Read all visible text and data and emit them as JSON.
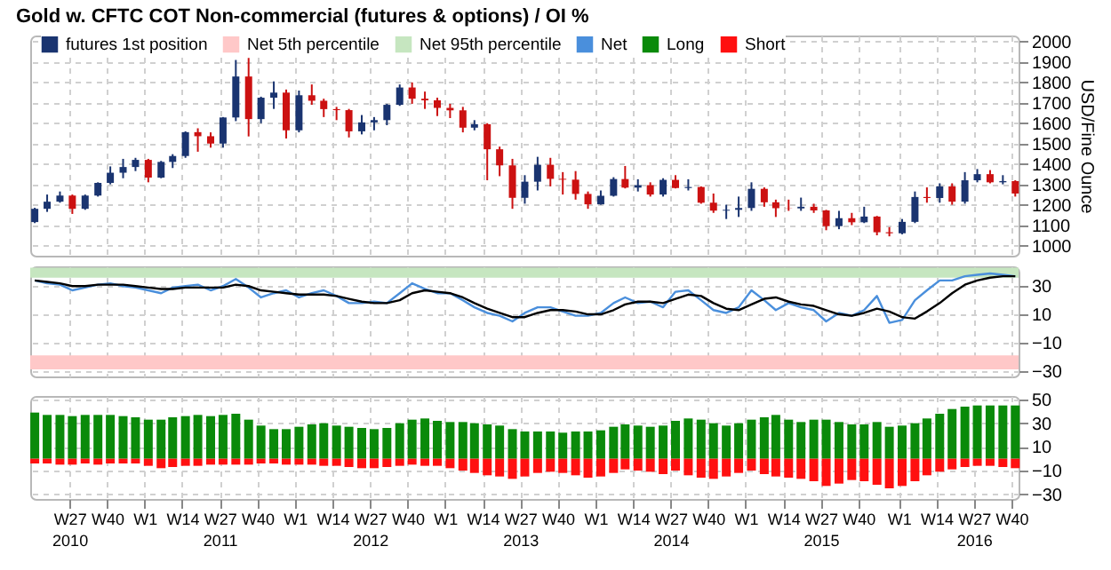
{
  "chart_data": [
    {
      "type": "candlestick",
      "title": "Gold w. CFTC COT Non-commercial (futures & options) / OI %",
      "ylabel": "USD/Fine Ounce",
      "legend": "top left",
      "grid": true,
      "tick_labels": "y",
      "xlim": [
        "2010-04-01",
        "2016-10-20"
      ],
      "x": [
        "2010-04-12",
        "2010-05-12",
        "2010-06-12",
        "2010-07-12",
        "2010-08-12",
        "2010-09-12",
        "2010-10-12",
        "2010-11-12",
        "2010-12-12",
        "2011-01-12",
        "2011-02-12",
        "2011-03-12",
        "2011-04-12",
        "2011-05-12",
        "2011-06-12",
        "2011-07-12",
        "2011-08-12",
        "2011-09-12",
        "2011-10-12",
        "2011-11-12",
        "2011-12-12",
        "2012-01-12",
        "2012-02-12",
        "2012-03-12",
        "2012-04-12",
        "2012-05-12",
        "2012-06-12",
        "2012-07-12",
        "2012-08-12",
        "2012-09-12",
        "2012-10-12",
        "2012-11-12",
        "2012-12-12",
        "2013-01-12",
        "2013-02-12",
        "2013-03-12",
        "2013-04-12",
        "2013-05-12",
        "2013-06-12",
        "2013-07-12",
        "2013-08-12",
        "2013-09-12",
        "2013-10-12",
        "2013-11-12",
        "2013-12-12",
        "2014-01-12",
        "2014-02-12",
        "2014-03-12",
        "2014-04-12",
        "2014-05-12",
        "2014-06-12",
        "2014-07-12",
        "2014-08-12",
        "2014-09-12",
        "2014-10-12",
        "2014-11-12",
        "2014-12-12",
        "2015-01-12",
        "2015-02-12",
        "2015-03-12",
        "2015-04-12",
        "2015-05-12",
        "2015-06-12",
        "2015-07-12",
        "2015-08-12",
        "2015-09-12",
        "2015-10-12",
        "2015-11-12",
        "2015-12-12",
        "2016-01-12",
        "2016-02-12",
        "2016-03-12",
        "2016-04-12",
        "2016-05-12",
        "2016-06-12",
        "2016-07-12",
        "2016-08-12",
        "2016-09-12",
        "2016-10-12"
      ],
      "series": [
        {
          "name": "futures 1st position",
          "type": "candlestick",
          "colors": [
            "#1a3470",
            "#1a3470",
            "#1a3470",
            "#cc1111",
            "#1a3470",
            "#1a3470",
            "#1a3470",
            "#1a3470",
            "#1a3470",
            "#cc1111",
            "#1a3470",
            "#1a3470",
            "#1a3470",
            "#cc1111",
            "#cc1111",
            "#1a3470",
            "#1a3470",
            "#cc1111",
            "#1a3470",
            "#1a3470",
            "#cc1111",
            "#1a3470",
            "#cc1111",
            "#cc1111",
            "#cc1111",
            "#cc1111",
            "#1a3470",
            "#1a3470",
            "#1a3470",
            "#1a3470",
            "#cc1111",
            "#cc1111",
            "#cc1111",
            "#cc1111",
            "#cc1111",
            "#1a3470",
            "#cc1111",
            "#cc1111",
            "#cc1111",
            "#1a3470",
            "#1a3470",
            "#cc1111",
            "#cc1111",
            "#cc1111",
            "#cc1111",
            "#1a3470",
            "#1a3470",
            "#cc1111",
            "#1a3470",
            "#cc1111",
            "#1a3470",
            "#cc1111",
            "#1a3470",
            "#cc1111",
            "#cc1111",
            "#1a3470",
            "#1a3470",
            "#1a3470",
            "#cc1111",
            "#cc1111",
            "#cc1111",
            "#1a3470",
            "#cc1111",
            "#cc1111",
            "#1a3470",
            "#cc1111",
            "#1a3470",
            "#cc1111",
            "#cc1111",
            "#1a3470",
            "#1a3470",
            "#cc1111",
            "#1a3470",
            "#cc1111",
            "#1a3470",
            "#1a3470",
            "#cc1111",
            "#1a3470",
            "#cc1111"
          ],
          "ohlc": [
            [
              1115,
              1185,
              1110,
              1180
            ],
            [
              1180,
              1250,
              1165,
              1215
            ],
            [
              1215,
              1265,
              1210,
              1245
            ],
            [
              1245,
              1250,
              1155,
              1180
            ],
            [
              1180,
              1250,
              1175,
              1245
            ],
            [
              1245,
              1310,
              1240,
              1307
            ],
            [
              1307,
              1388,
              1300,
              1357
            ],
            [
              1357,
              1425,
              1330,
              1385
            ],
            [
              1385,
              1430,
              1365,
              1420
            ],
            [
              1420,
              1425,
              1310,
              1333
            ],
            [
              1333,
              1415,
              1330,
              1410
            ],
            [
              1410,
              1448,
              1380,
              1439
            ],
            [
              1439,
              1560,
              1430,
              1556
            ],
            [
              1556,
              1575,
              1460,
              1536
            ],
            [
              1536,
              1555,
              1480,
              1500
            ],
            [
              1500,
              1630,
              1480,
              1628
            ],
            [
              1628,
              1910,
              1610,
              1829
            ],
            [
              1829,
              1920,
              1535,
              1620
            ],
            [
              1620,
              1730,
              1600,
              1725
            ],
            [
              1725,
              1805,
              1670,
              1750
            ],
            [
              1750,
              1765,
              1525,
              1565
            ],
            [
              1565,
              1760,
              1555,
              1737
            ],
            [
              1737,
              1790,
              1690,
              1710
            ],
            [
              1710,
              1720,
              1630,
              1669
            ],
            [
              1669,
              1680,
              1615,
              1664
            ],
            [
              1664,
              1670,
              1530,
              1560
            ],
            [
              1560,
              1640,
              1545,
              1604
            ],
            [
              1604,
              1630,
              1565,
              1615
            ],
            [
              1615,
              1695,
              1590,
              1690
            ],
            [
              1690,
              1790,
              1685,
              1775
            ],
            [
              1775,
              1800,
              1695,
              1720
            ],
            [
              1720,
              1755,
              1670,
              1712
            ],
            [
              1712,
              1725,
              1635,
              1675
            ],
            [
              1675,
              1695,
              1625,
              1663
            ],
            [
              1663,
              1680,
              1555,
              1578
            ],
            [
              1578,
              1615,
              1565,
              1595
            ],
            [
              1595,
              1600,
              1320,
              1472
            ],
            [
              1472,
              1485,
              1340,
              1393
            ],
            [
              1393,
              1425,
              1180,
              1234
            ],
            [
              1234,
              1345,
              1205,
              1313
            ],
            [
              1313,
              1435,
              1270,
              1396
            ],
            [
              1396,
              1430,
              1290,
              1327
            ],
            [
              1327,
              1360,
              1250,
              1323
            ],
            [
              1323,
              1365,
              1225,
              1253
            ],
            [
              1253,
              1265,
              1180,
              1202
            ],
            [
              1202,
              1270,
              1200,
              1244
            ],
            [
              1244,
              1335,
              1240,
              1326
            ],
            [
              1326,
              1390,
              1280,
              1284
            ],
            [
              1284,
              1325,
              1265,
              1296
            ],
            [
              1296,
              1310,
              1240,
              1250
            ],
            [
              1250,
              1330,
              1240,
              1322
            ],
            [
              1322,
              1345,
              1280,
              1282
            ],
            [
              1282,
              1325,
              1270,
              1287
            ],
            [
              1287,
              1290,
              1205,
              1210
            ],
            [
              1210,
              1255,
              1160,
              1171
            ],
            [
              1171,
              1200,
              1130,
              1175
            ],
            [
              1175,
              1240,
              1140,
              1184
            ],
            [
              1184,
              1310,
              1170,
              1278
            ],
            [
              1278,
              1285,
              1190,
              1212
            ],
            [
              1212,
              1225,
              1140,
              1183
            ],
            [
              1183,
              1225,
              1170,
              1182
            ],
            [
              1182,
              1235,
              1170,
              1190
            ],
            [
              1190,
              1205,
              1160,
              1172
            ],
            [
              1172,
              1175,
              1075,
              1095
            ],
            [
              1095,
              1170,
              1080,
              1134
            ],
            [
              1134,
              1160,
              1100,
              1114
            ],
            [
              1114,
              1190,
              1110,
              1142
            ],
            [
              1142,
              1145,
              1050,
              1065
            ],
            [
              1065,
              1090,
              1045,
              1060
            ],
            [
              1060,
              1130,
              1055,
              1116
            ],
            [
              1116,
              1265,
              1110,
              1238
            ],
            [
              1238,
              1285,
              1210,
              1233
            ],
            [
              1233,
              1305,
              1210,
              1290
            ],
            [
              1290,
              1305,
              1200,
              1215
            ],
            [
              1215,
              1360,
              1205,
              1320
            ],
            [
              1320,
              1375,
              1310,
              1350
            ],
            [
              1350,
              1370,
              1305,
              1310
            ],
            [
              1310,
              1345,
              1300,
              1316
            ],
            [
              1316,
              1320,
              1240,
              1255
            ]
          ]
        }
      ],
      "ylim": [
        950,
        2030
      ],
      "yticks": [
        1000,
        1100,
        1200,
        1300,
        1400,
        1500,
        1600,
        1700,
        1800,
        1900,
        2000
      ]
    },
    {
      "type": "line",
      "legend": "top",
      "grid": true,
      "tick_labels": "y",
      "xlim": [
        "2010-04-01",
        "2016-10-20"
      ],
      "x": [
        "2010-04-12",
        "2010-05-12",
        "2010-06-12",
        "2010-07-12",
        "2010-08-12",
        "2010-09-12",
        "2010-10-12",
        "2010-11-12",
        "2010-12-12",
        "2011-01-12",
        "2011-02-12",
        "2011-03-12",
        "2011-04-12",
        "2011-05-12",
        "2011-06-12",
        "2011-07-12",
        "2011-08-12",
        "2011-09-12",
        "2011-10-12",
        "2011-11-12",
        "2011-12-12",
        "2012-01-12",
        "2012-02-12",
        "2012-03-12",
        "2012-04-12",
        "2012-05-12",
        "2012-06-12",
        "2012-07-12",
        "2012-08-12",
        "2012-09-12",
        "2012-10-12",
        "2012-11-12",
        "2012-12-12",
        "2013-01-12",
        "2013-02-12",
        "2013-03-12",
        "2013-04-12",
        "2013-05-12",
        "2013-06-12",
        "2013-07-12",
        "2013-08-12",
        "2013-09-12",
        "2013-10-12",
        "2013-11-12",
        "2013-12-12",
        "2014-01-12",
        "2014-02-12",
        "2014-03-12",
        "2014-04-12",
        "2014-05-12",
        "2014-06-12",
        "2014-07-12",
        "2014-08-12",
        "2014-09-12",
        "2014-10-12",
        "2014-11-12",
        "2014-12-12",
        "2015-01-12",
        "2015-02-12",
        "2015-03-12",
        "2015-04-12",
        "2015-05-12",
        "2015-06-12",
        "2015-07-12",
        "2015-08-12",
        "2015-09-12",
        "2015-10-12",
        "2015-11-12",
        "2015-12-12",
        "2016-01-12",
        "2016-02-12",
        "2016-03-12",
        "2016-04-12",
        "2016-05-12",
        "2016-06-12",
        "2016-07-12",
        "2016-08-12",
        "2016-09-12",
        "2016-10-12"
      ],
      "bands": [
        {
          "axis": "y",
          "from": -29,
          "to": -19,
          "label": "Net 5th percentile",
          "color": "#ffc8c8"
        },
        {
          "axis": "y",
          "from": 36,
          "to": 43,
          "label": "Net 95th percentile",
          "color": "#c6e6c0"
        }
      ],
      "series": [
        {
          "name": "Net",
          "color": "#4a8fdc",
          "values": [
            34,
            32,
            31,
            27,
            29,
            31,
            32,
            30,
            29,
            27,
            25,
            29,
            30,
            31,
            27,
            30,
            35,
            29,
            22,
            25,
            27,
            22,
            25,
            27,
            23,
            18,
            18,
            19,
            18,
            25,
            32,
            28,
            25,
            25,
            20,
            15,
            11,
            9,
            5,
            11,
            15,
            15,
            12,
            9,
            9,
            11,
            18,
            22,
            18,
            19,
            15,
            26,
            27,
            20,
            13,
            11,
            15,
            27,
            20,
            13,
            18,
            15,
            13,
            5,
            11,
            9,
            13,
            23,
            4,
            6,
            20,
            27,
            34,
            34,
            37,
            38,
            39,
            38,
            37
          ]
        },
        {
          "color": "#000000",
          "values": [
            34,
            33,
            32,
            30,
            30,
            31,
            31,
            31,
            30,
            29,
            28,
            28,
            29,
            29,
            29,
            29,
            31,
            30,
            27,
            26,
            25,
            24,
            24,
            24,
            23,
            21,
            19,
            18,
            18,
            20,
            25,
            27,
            26,
            25,
            22,
            18,
            14,
            11,
            8,
            8,
            11,
            13,
            13,
            12,
            10,
            10,
            13,
            17,
            19,
            19,
            18,
            21,
            24,
            23,
            18,
            14,
            13,
            17,
            21,
            22,
            19,
            17,
            16,
            13,
            10,
            9,
            11,
            14,
            12,
            8,
            7,
            12,
            18,
            25,
            31,
            34,
            36,
            37,
            37
          ]
        }
      ],
      "ylim": [
        -34,
        44
      ],
      "yticks": [
        30,
        10,
        -10,
        -30
      ]
    },
    {
      "type": "bar",
      "legend": "top",
      "stacked": true,
      "grid": true,
      "xlim": [
        "2010-04-01",
        "2016-10-20"
      ],
      "x": [
        "2010-04-12",
        "2010-05-12",
        "2010-06-12",
        "2010-07-12",
        "2010-08-12",
        "2010-09-12",
        "2010-10-12",
        "2010-11-12",
        "2010-12-12",
        "2011-01-12",
        "2011-02-12",
        "2011-03-12",
        "2011-04-12",
        "2011-05-12",
        "2011-06-12",
        "2011-07-12",
        "2011-08-12",
        "2011-09-12",
        "2011-10-12",
        "2011-11-12",
        "2011-12-12",
        "2012-01-12",
        "2012-02-12",
        "2012-03-12",
        "2012-04-12",
        "2012-05-12",
        "2012-06-12",
        "2012-07-12",
        "2012-08-12",
        "2012-09-12",
        "2012-10-12",
        "2012-11-12",
        "2012-12-12",
        "2013-01-12",
        "2013-02-12",
        "2013-03-12",
        "2013-04-12",
        "2013-05-12",
        "2013-06-12",
        "2013-07-12",
        "2013-08-12",
        "2013-09-12",
        "2013-10-12",
        "2013-11-12",
        "2013-12-12",
        "2014-01-12",
        "2014-02-12",
        "2014-03-12",
        "2014-04-12",
        "2014-05-12",
        "2014-06-12",
        "2014-07-12",
        "2014-08-12",
        "2014-09-12",
        "2014-10-12",
        "2014-11-12",
        "2014-12-12",
        "2015-01-12",
        "2015-02-12",
        "2015-03-12",
        "2015-04-12",
        "2015-05-12",
        "2015-06-12",
        "2015-07-12",
        "2015-08-12",
        "2015-09-12",
        "2015-10-12",
        "2015-11-12",
        "2015-12-12",
        "2016-01-12",
        "2016-02-12",
        "2016-03-12",
        "2016-04-12",
        "2016-05-12",
        "2016-06-12",
        "2016-07-12",
        "2016-08-12",
        "2016-09-12",
        "2016-10-12"
      ],
      "xticks": [
        {
          "value": "2010-07-05",
          "label": "W27\n2010"
        },
        {
          "value": "2010-10-04",
          "label": "W40"
        },
        {
          "value": "2011-01-03",
          "label": "W1"
        },
        {
          "value": "2011-04-04",
          "label": "W14"
        },
        {
          "value": "2011-07-04",
          "label": "W27\n2011"
        },
        {
          "value": "2011-10-03",
          "label": "W40"
        },
        {
          "value": "2012-01-02",
          "label": "W1"
        },
        {
          "value": "2012-04-02",
          "label": "W14"
        },
        {
          "value": "2012-07-02",
          "label": "W27\n2012"
        },
        {
          "value": "2012-10-01",
          "label": "W40"
        },
        {
          "value": "2012-12-31",
          "label": "W1"
        },
        {
          "value": "2013-04-01",
          "label": "W14"
        },
        {
          "value": "2013-07-01",
          "label": "W27\n2013"
        },
        {
          "value": "2013-09-30",
          "label": "W40"
        },
        {
          "value": "2013-12-30",
          "label": "W1"
        },
        {
          "value": "2014-03-31",
          "label": "W14"
        },
        {
          "value": "2014-06-30",
          "label": "W27\n2014"
        },
        {
          "value": "2014-09-29",
          "label": "W40"
        },
        {
          "value": "2014-12-29",
          "label": "W1"
        },
        {
          "value": "2015-03-30",
          "label": "W14"
        },
        {
          "value": "2015-06-29",
          "label": "W27\n2015"
        },
        {
          "value": "2015-09-28",
          "label": "W40"
        },
        {
          "value": "2016-01-04",
          "label": "W1"
        },
        {
          "value": "2016-04-04",
          "label": "W14"
        },
        {
          "value": "2016-07-04",
          "label": "W27\n2016"
        },
        {
          "value": "2016-10-03",
          "label": "W40"
        }
      ],
      "series": [
        {
          "name": "Long",
          "color": "#0a8a0a",
          "values": [
            39,
            37,
            37,
            36,
            37,
            37,
            37,
            36,
            35,
            33,
            33,
            35,
            36,
            37,
            36,
            37,
            38,
            33,
            28,
            25,
            25,
            27,
            29,
            30,
            28,
            27,
            26,
            25,
            26,
            30,
            33,
            34,
            32,
            31,
            31,
            30,
            29,
            28,
            25,
            23,
            23,
            23,
            22,
            23,
            23,
            24,
            27,
            29,
            28,
            27,
            28,
            32,
            34,
            33,
            30,
            28,
            30,
            33,
            35,
            37,
            33,
            31,
            33,
            33,
            31,
            29,
            29,
            31,
            27,
            28,
            30,
            34,
            38,
            42,
            44,
            45,
            45,
            45,
            45
          ]
        },
        {
          "name": "Short",
          "color": "#ff1010",
          "values": [
            -4,
            -4,
            -5,
            -5,
            -4,
            -5,
            -4,
            -4,
            -4,
            -6,
            -8,
            -7,
            -6,
            -6,
            -5,
            -5,
            -5,
            -5,
            -4,
            -4,
            -5,
            -5,
            -5,
            -6,
            -6,
            -7,
            -8,
            -8,
            -7,
            -6,
            -5,
            -6,
            -6,
            -8,
            -10,
            -12,
            -14,
            -15,
            -17,
            -15,
            -12,
            -11,
            -12,
            -14,
            -16,
            -15,
            -12,
            -9,
            -10,
            -11,
            -13,
            -10,
            -14,
            -16,
            -17,
            -15,
            -12,
            -10,
            -13,
            -15,
            -16,
            -17,
            -19,
            -23,
            -21,
            -18,
            -19,
            -22,
            -25,
            -23,
            -19,
            -14,
            -11,
            -9,
            -7,
            -6,
            -6,
            -7,
            -8
          ]
        }
      ],
      "ylim": [
        -34,
        53
      ],
      "yticks": [
        50,
        30,
        10,
        -10,
        -30
      ]
    }
  ]
}
